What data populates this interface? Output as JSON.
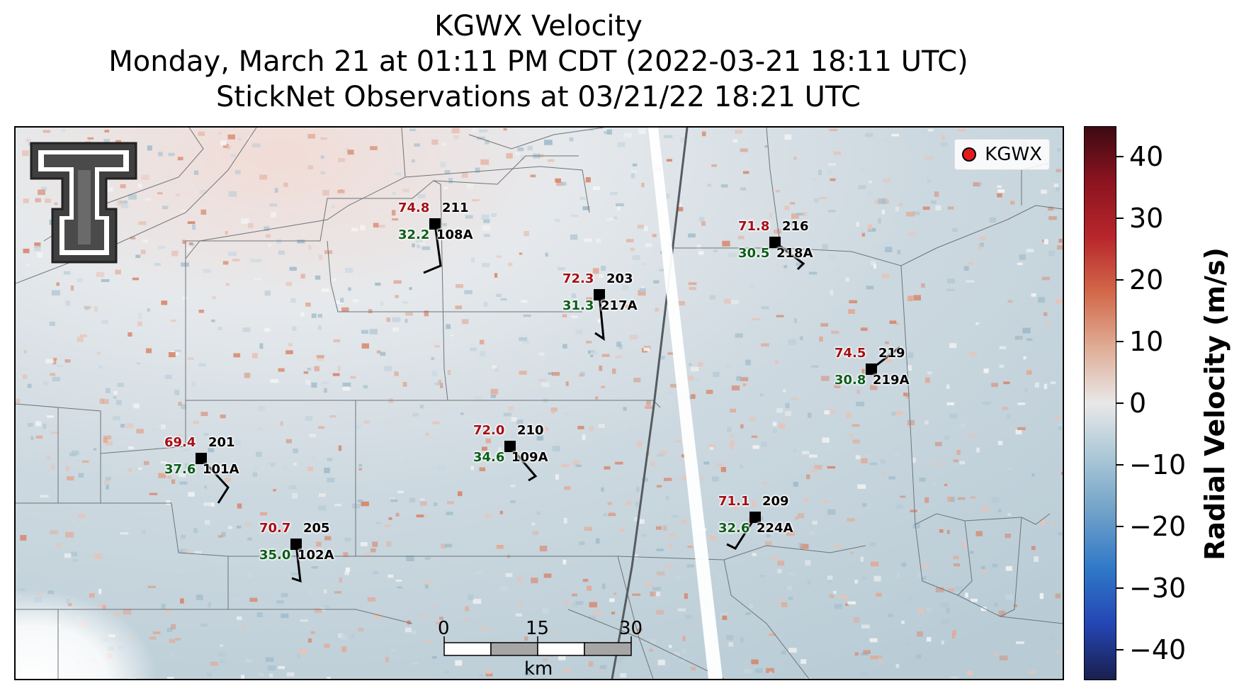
{
  "title": {
    "line1": "KGWX Velocity",
    "line2": "Monday, March 21 at 01:11 PM CDT (2022-03-21 18:11 UTC)",
    "line3": "StickNet Observations at 03/21/22 18:21 UTC"
  },
  "legend": {
    "label": "KGWX"
  },
  "logo": {
    "name": "Texas Tech double-T logo"
  },
  "scale_bar": {
    "ticks": [
      "0",
      "15",
      "30"
    ],
    "unit": "km"
  },
  "colorbar": {
    "label": "Radial Velocity (m/s)",
    "ticks": [
      "40",
      "30",
      "20",
      "10",
      "0",
      "−10",
      "−20",
      "−30",
      "−40"
    ],
    "range": [
      -45,
      45
    ],
    "colors": [
      "#1a1f4d",
      "#2446b4",
      "#2f78c8",
      "#6ea0c8",
      "#a9c6d6",
      "#e8e8e8",
      "#e0ad96",
      "#d2694a",
      "#b8262b",
      "#8c1420",
      "#3d0a12"
    ]
  },
  "stations": [
    {
      "id": "211",
      "probe": "108A",
      "temp": "74.8",
      "dew": "32.2"
    },
    {
      "id": "203",
      "probe": "217A",
      "temp": "72.3",
      "dew": "31.3"
    },
    {
      "id": "216",
      "probe": "218A",
      "temp": "71.8",
      "dew": "30.5"
    },
    {
      "id": "219",
      "probe": "219A",
      "temp": "74.5",
      "dew": "30.8"
    },
    {
      "id": "210",
      "probe": "109A",
      "temp": "72.0",
      "dew": "34.6"
    },
    {
      "id": "201",
      "probe": "101A",
      "temp": "69.4",
      "dew": "37.6"
    },
    {
      "id": "205",
      "probe": "102A",
      "temp": "70.7",
      "dew": "35.0"
    },
    {
      "id": "209",
      "probe": "224A",
      "temp": "71.1",
      "dew": "32.6"
    }
  ]
}
